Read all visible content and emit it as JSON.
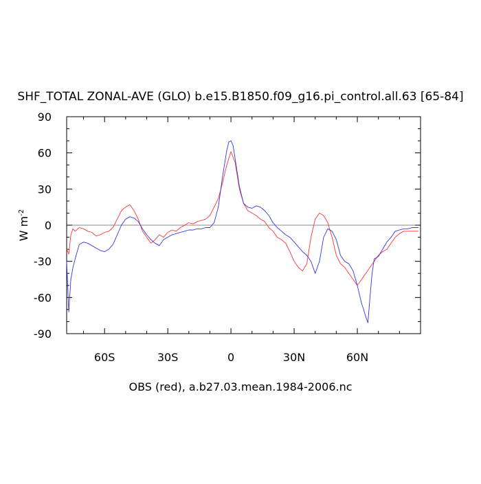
{
  "chart_data": {
    "type": "line",
    "title": "SHF_TOTAL ZONAL-AVE (GLO) b.e15.B1850.f09_g16.pi_control.all.63 [65-84]",
    "subtitle": "OBS (red), a.b27.03.mean.1984-2006.nc",
    "ylabel": "W m",
    "ylabel_exp": "-2",
    "xlim": [
      -78,
      90
    ],
    "ylim": [
      -90,
      90
    ],
    "x_ticks": [
      -60,
      -30,
      0,
      30,
      60
    ],
    "x_tick_labels": [
      "60S",
      "30S",
      "0",
      "30N",
      "60N"
    ],
    "y_ticks": [
      90,
      60,
      30,
      0,
      -30,
      -60,
      -90
    ],
    "y_tick_labels": [
      "90",
      "60",
      "30",
      "0",
      "-30",
      "-60",
      "-90"
    ],
    "zero_line": true,
    "colors": {
      "red": "#ff3333",
      "blue": "#3333e6",
      "zero": "#888888"
    },
    "series": [
      {
        "color": "red",
        "x": [
          -78,
          -77,
          -76,
          -75,
          -74,
          -72,
          -70,
          -68,
          -66,
          -64,
          -62,
          -60,
          -58,
          -56,
          -54,
          -52,
          -50,
          -48,
          -46,
          -44,
          -42,
          -40,
          -38,
          -36,
          -34,
          -32,
          -30,
          -28,
          -26,
          -24,
          -22,
          -20,
          -18,
          -16,
          -14,
          -12,
          -10,
          -8,
          -6,
          -4,
          -2,
          0,
          2,
          4,
          6,
          8,
          10,
          12,
          14,
          16,
          18,
          20,
          22,
          24,
          26,
          28,
          30,
          32,
          34,
          36,
          38,
          40,
          42,
          44,
          46,
          48,
          50,
          52,
          54,
          56,
          58,
          60,
          62,
          64,
          66,
          68,
          70,
          72,
          74,
          76,
          78,
          80,
          82,
          84,
          86,
          88,
          89
        ],
        "y": [
          -20,
          -24,
          -8,
          -3,
          -5,
          -2,
          -3,
          -5,
          -6,
          -9,
          -8,
          -6,
          -5,
          -2,
          5,
          12,
          15,
          17,
          12,
          5,
          -5,
          -10,
          -15,
          -12,
          -8,
          -10,
          -6,
          -4,
          -5,
          -2,
          0,
          2,
          1,
          3,
          4,
          5,
          8,
          15,
          22,
          35,
          50,
          61,
          52,
          30,
          18,
          12,
          10,
          8,
          5,
          3,
          -2,
          -5,
          -10,
          -12,
          -15,
          -22,
          -30,
          -35,
          -38,
          -32,
          -10,
          5,
          10,
          8,
          2,
          -10,
          -25,
          -32,
          -35,
          -40,
          -45,
          -50,
          -45,
          -40,
          -35,
          -30,
          -25,
          -22,
          -20,
          -15,
          -10,
          -7,
          -5,
          -5,
          -5,
          -5,
          -5
        ]
      },
      {
        "color": "blue",
        "x": [
          -78,
          -77,
          -76,
          -75,
          -74,
          -73,
          -72,
          -70,
          -68,
          -66,
          -64,
          -62,
          -60,
          -58,
          -56,
          -54,
          -52,
          -50,
          -48,
          -46,
          -44,
          -42,
          -40,
          -38,
          -36,
          -34,
          -32,
          -30,
          -28,
          -26,
          -24,
          -22,
          -20,
          -18,
          -16,
          -14,
          -12,
          -10,
          -8,
          -6,
          -4,
          -2,
          -1,
          0,
          1,
          2,
          4,
          6,
          8,
          10,
          12,
          14,
          16,
          18,
          20,
          22,
          24,
          26,
          28,
          30,
          32,
          34,
          36,
          38,
          40,
          42,
          44,
          46,
          48,
          50,
          52,
          54,
          56,
          58,
          60,
          62,
          63,
          64,
          65,
          66,
          67,
          68,
          70,
          72,
          74,
          76,
          78,
          80,
          82,
          84,
          86,
          88,
          89
        ],
        "y": [
          -30,
          -72,
          -45,
          -35,
          -28,
          -22,
          -16,
          -14,
          -15,
          -17,
          -19,
          -21,
          -22,
          -20,
          -16,
          -8,
          0,
          5,
          7,
          6,
          3,
          -3,
          -8,
          -12,
          -15,
          -17,
          -12,
          -10,
          -8,
          -7,
          -6,
          -5,
          -4,
          -4,
          -3,
          -3,
          -2,
          -2,
          2,
          15,
          40,
          62,
          69,
          70,
          66,
          55,
          32,
          18,
          15,
          14,
          16,
          15,
          12,
          8,
          2,
          -2,
          -5,
          -8,
          -10,
          -14,
          -18,
          -22,
          -25,
          -30,
          -40,
          -30,
          -10,
          -3,
          -5,
          -12,
          -25,
          -30,
          -32,
          -38,
          -50,
          -65,
          -70,
          -76,
          -81,
          -60,
          -40,
          -28,
          -26,
          -20,
          -14,
          -10,
          -5,
          -4,
          -3,
          -3,
          -2,
          -2,
          -2
        ]
      }
    ]
  }
}
